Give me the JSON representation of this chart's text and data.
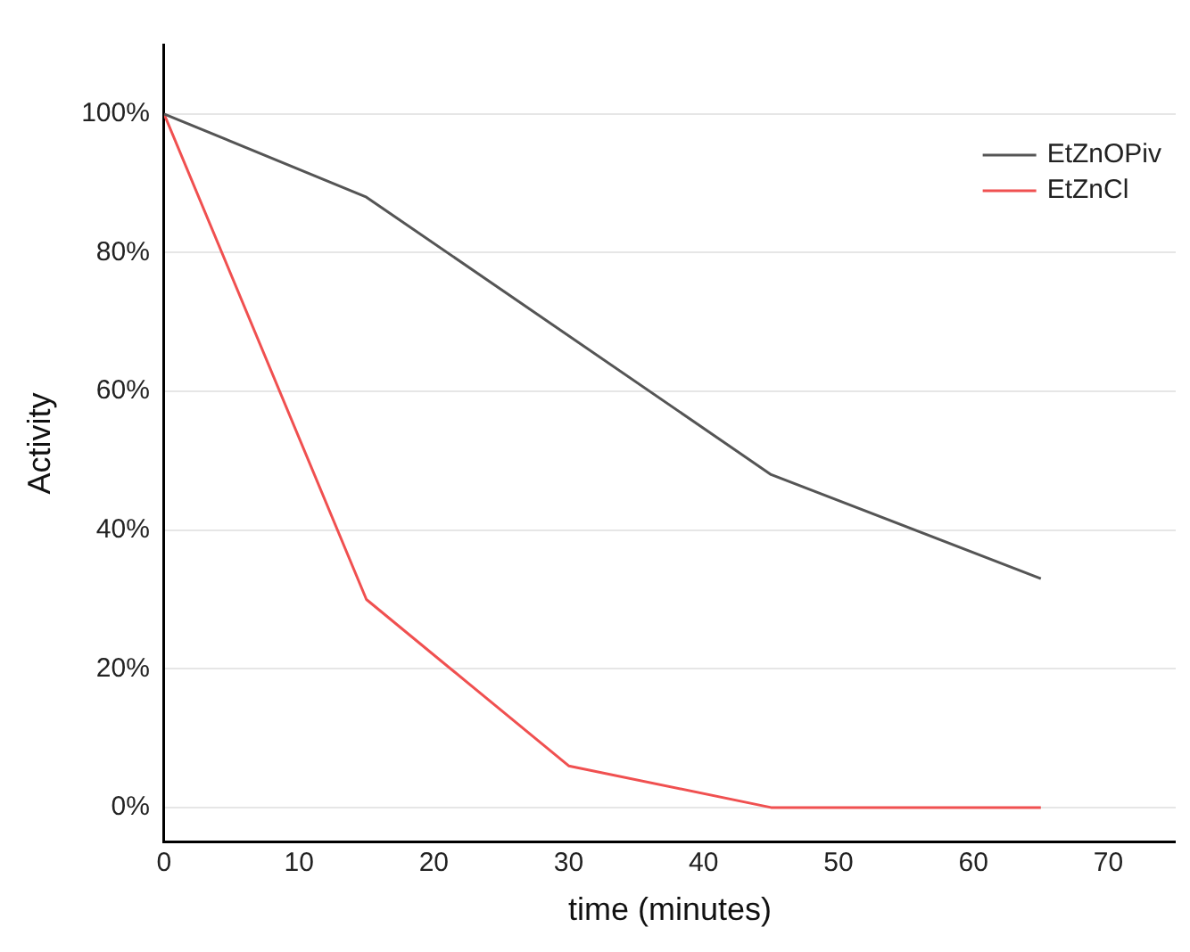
{
  "chart_data": {
    "type": "line",
    "xlabel": "time (minutes)",
    "ylabel": "Activity",
    "series": [
      {
        "name": "EtZnOPiv",
        "color": "#555555",
        "x": [
          0,
          15,
          45,
          65
        ],
        "values": [
          100,
          88,
          48,
          33
        ]
      },
      {
        "name": "EtZnCl",
        "color": "#f05050",
        "x": [
          0,
          15,
          30,
          45,
          65
        ],
        "values": [
          100,
          30,
          6,
          0,
          0
        ]
      }
    ],
    "xlim": [
      0,
      75
    ],
    "xticks": [
      0,
      10,
      20,
      30,
      40,
      50,
      60,
      70
    ],
    "ylim": [
      -5,
      110
    ],
    "yticks": [
      {
        "value": 0,
        "label": "0%"
      },
      {
        "value": 20,
        "label": "20%"
      },
      {
        "value": 40,
        "label": "40%"
      },
      {
        "value": 60,
        "label": "60%"
      },
      {
        "value": 80,
        "label": "80%"
      },
      {
        "value": 100,
        "label": "100%"
      }
    ],
    "grid": "y",
    "legend": "top right",
    "marker": "none",
    "line_style": "solid"
  }
}
